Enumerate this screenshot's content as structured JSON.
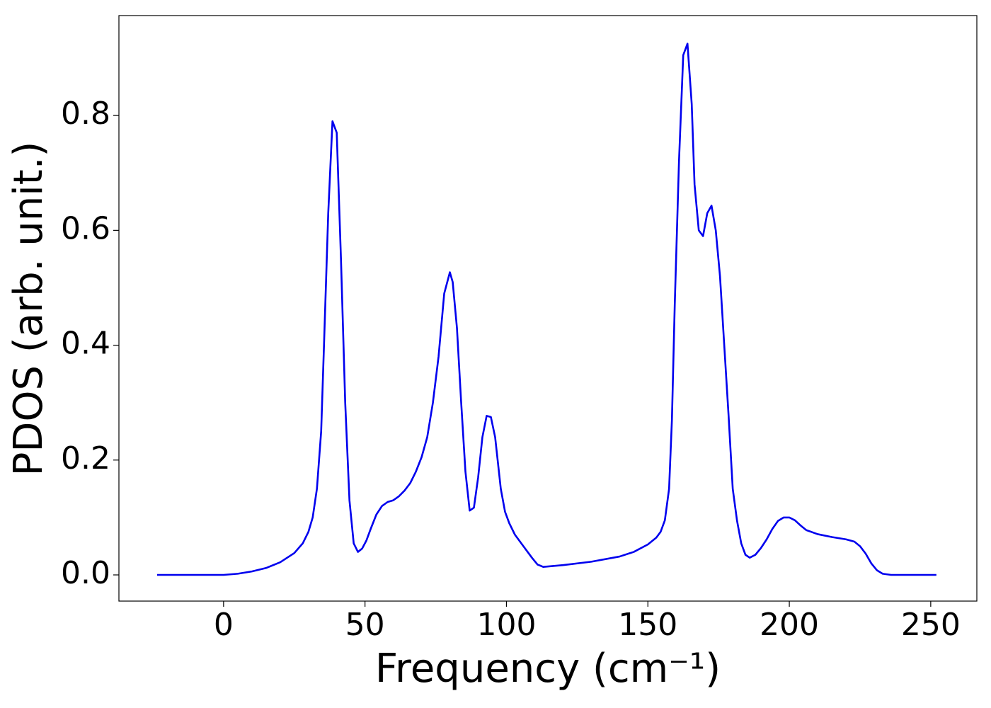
{
  "chart_data": {
    "type": "line",
    "xlabel": "Frequency (cm⁻¹)",
    "ylabel": "PDOS (arb. unit.)",
    "xlim": [
      -37,
      266.3
    ],
    "ylim": [
      -0.0456,
      0.974
    ],
    "xticks": [
      0,
      50,
      100,
      150,
      200,
      250
    ],
    "yticks": [
      {
        "value": 0,
        "label": "0.0"
      },
      0.2,
      0.4,
      0.6,
      0.8
    ],
    "grid": false,
    "series": [
      {
        "name": "PDOS",
        "color": "#0000ee",
        "x": [
          -23.5,
          0,
          5,
          10,
          15,
          20,
          25,
          28,
          30,
          31.5,
          33,
          34.5,
          35.5,
          37,
          38.5,
          40,
          41.5,
          43,
          44.5,
          46,
          47.5,
          49,
          50.5,
          52,
          54,
          56,
          58,
          60,
          62,
          64,
          66,
          68,
          70,
          72,
          74,
          76,
          78,
          80,
          81,
          82.5,
          84,
          85.5,
          87,
          88.5,
          90,
          91.5,
          93,
          94.5,
          96,
          98,
          99.5,
          101,
          103,
          106,
          109,
          111,
          113,
          120,
          130,
          140,
          145,
          150,
          153,
          154.5,
          156,
          157.5,
          158.5,
          159.5,
          161,
          162.5,
          164,
          165.5,
          166.5,
          168,
          169.5,
          171,
          172.5,
          174,
          175.5,
          177,
          178.5,
          180,
          181.5,
          183,
          184.5,
          186,
          188,
          190,
          192,
          194,
          196,
          198,
          200,
          202,
          204,
          206,
          210,
          215,
          220,
          223,
          225,
          227,
          229,
          231,
          233,
          236,
          252
        ],
        "values": [
          0,
          0,
          0.002,
          0.006,
          0.012,
          0.022,
          0.038,
          0.055,
          0.075,
          0.1,
          0.15,
          0.25,
          0.4,
          0.63,
          0.79,
          0.77,
          0.55,
          0.3,
          0.13,
          0.055,
          0.04,
          0.046,
          0.06,
          0.08,
          0.105,
          0.12,
          0.127,
          0.13,
          0.137,
          0.147,
          0.16,
          0.18,
          0.205,
          0.24,
          0.3,
          0.38,
          0.49,
          0.527,
          0.51,
          0.43,
          0.3,
          0.18,
          0.112,
          0.117,
          0.17,
          0.24,
          0.277,
          0.275,
          0.24,
          0.15,
          0.11,
          0.09,
          0.07,
          0.05,
          0.03,
          0.018,
          0.014,
          0.017,
          0.023,
          0.032,
          0.04,
          0.053,
          0.065,
          0.075,
          0.095,
          0.15,
          0.27,
          0.47,
          0.72,
          0.905,
          0.925,
          0.82,
          0.68,
          0.6,
          0.59,
          0.63,
          0.643,
          0.6,
          0.52,
          0.4,
          0.28,
          0.15,
          0.095,
          0.055,
          0.035,
          0.03,
          0.035,
          0.047,
          0.062,
          0.08,
          0.094,
          0.1,
          0.1,
          0.095,
          0.086,
          0.078,
          0.071,
          0.066,
          0.062,
          0.058,
          0.05,
          0.037,
          0.02,
          0.008,
          0.002,
          0,
          0
        ]
      }
    ]
  }
}
